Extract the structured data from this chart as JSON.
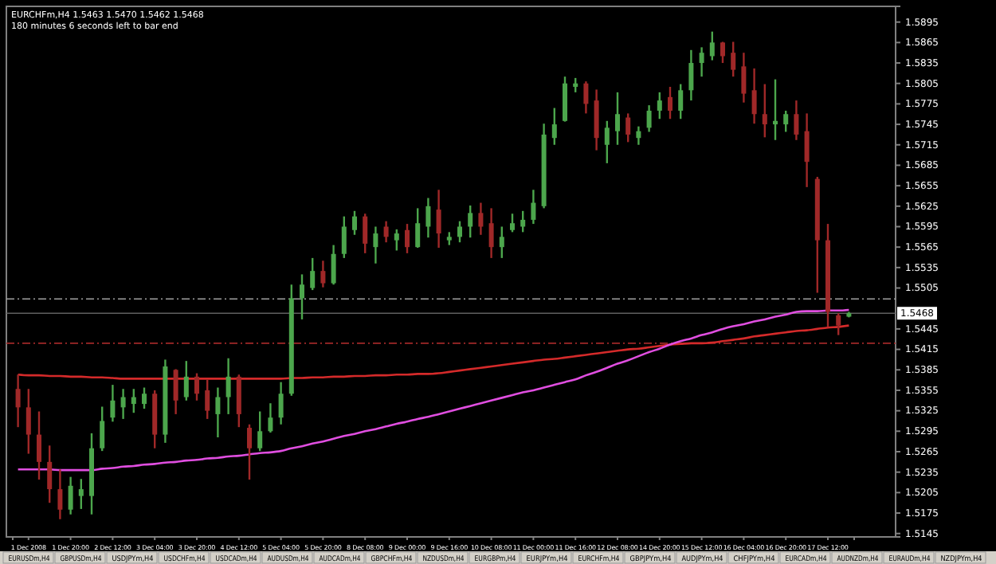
{
  "chart_data": {
    "type": "candlestick",
    "title": "EURCHFm,H4  1.5463 1.5470 1.5462 1.5468",
    "subtitle": "180 minutes 6 seconds left to bar end",
    "categories": [
      null,
      "1 Dec 2008",
      null,
      null,
      null,
      "1 Dec 20:00",
      null,
      null,
      null,
      "2 Dec 12:00",
      null,
      null,
      null,
      "3 Dec 04:00",
      null,
      null,
      null,
      "3 Dec 20:00",
      null,
      null,
      null,
      "4 Dec 12:00",
      null,
      null,
      null,
      "5 Dec 04:00",
      null,
      null,
      null,
      "5 Dec 20:00",
      null,
      null,
      null,
      "8 Dec 08:00",
      null,
      null,
      null,
      "9 Dec 00:00",
      null,
      null,
      null,
      "9 Dec 16:00",
      null,
      null,
      null,
      "10 Dec 08:00",
      null,
      null,
      null,
      "11 Dec 00:00",
      null,
      null,
      null,
      "11 Dec 16:00",
      null,
      null,
      null,
      "12 Dec 08:00",
      null,
      null,
      null,
      "14 Dec 20:00",
      null,
      null,
      null,
      "15 Dec 12:00",
      null,
      null,
      null,
      "16 Dec 04:00",
      null,
      null,
      null,
      "16 Dec 20:00",
      null,
      null,
      null,
      "17 Dec 12:00",
      null,
      null
    ],
    "ohlc": [
      [
        1.5357,
        1.5378,
        1.5301,
        1.533
      ],
      [
        1.533,
        1.5357,
        1.5262,
        1.529
      ],
      [
        1.529,
        1.5324,
        1.5224,
        1.525
      ],
      [
        1.525,
        1.5274,
        1.519,
        1.521
      ],
      [
        1.521,
        1.5239,
        1.5166,
        1.518
      ],
      [
        1.518,
        1.5228,
        1.5173,
        1.5215
      ],
      [
        1.52,
        1.5225,
        1.5181,
        1.521
      ],
      [
        1.52,
        1.5292,
        1.5173,
        1.527
      ],
      [
        1.527,
        1.5331,
        1.5266,
        1.531
      ],
      [
        1.5315,
        1.5363,
        1.5309,
        1.534
      ],
      [
        1.533,
        1.5357,
        1.5313,
        1.5345
      ],
      [
        1.5335,
        1.5357,
        1.5322,
        1.5345
      ],
      [
        1.5335,
        1.5359,
        1.5328,
        1.535
      ],
      [
        1.535,
        1.5355,
        1.527,
        1.529
      ],
      [
        1.529,
        1.54,
        1.5278,
        1.539
      ],
      [
        1.5385,
        1.5386,
        1.532,
        1.534
      ],
      [
        1.5345,
        1.5398,
        1.534,
        1.5375
      ],
      [
        1.5375,
        1.538,
        1.534,
        1.535
      ],
      [
        1.5355,
        1.5371,
        1.5313,
        1.5325
      ],
      [
        1.532,
        1.5359,
        1.5286,
        1.5345
      ],
      [
        1.5345,
        1.5402,
        1.532,
        1.5375
      ],
      [
        1.5375,
        1.5378,
        1.5301,
        1.532
      ],
      [
        1.53,
        1.5305,
        1.5224,
        1.527
      ],
      [
        1.527,
        1.5324,
        1.5266,
        1.5295
      ],
      [
        1.5295,
        1.5336,
        1.5293,
        1.5315
      ],
      [
        1.5315,
        1.5367,
        1.5305,
        1.535
      ],
      [
        1.535,
        1.551,
        1.5347,
        1.549
      ],
      [
        1.549,
        1.5525,
        1.5459,
        1.551
      ],
      [
        1.5505,
        1.5549,
        1.5502,
        1.553
      ],
      [
        1.553,
        1.5545,
        1.5506,
        1.5512
      ],
      [
        1.5512,
        1.5568,
        1.551,
        1.5555
      ],
      [
        1.5555,
        1.561,
        1.5549,
        1.5595
      ],
      [
        1.559,
        1.5618,
        1.5583,
        1.561
      ],
      [
        1.561,
        1.5614,
        1.5556,
        1.557
      ],
      [
        1.5565,
        1.5595,
        1.5541,
        1.5585
      ],
      [
        1.5595,
        1.5603,
        1.5572,
        1.558
      ],
      [
        1.5575,
        1.5591,
        1.556,
        1.5585
      ],
      [
        1.559,
        1.5599,
        1.5556,
        1.5565
      ],
      [
        1.5565,
        1.5622,
        1.5564,
        1.56
      ],
      [
        1.5595,
        1.5637,
        1.5579,
        1.5625
      ],
      [
        1.562,
        1.5649,
        1.5564,
        1.5585
      ],
      [
        1.5575,
        1.5587,
        1.5568,
        1.558
      ],
      [
        1.558,
        1.5603,
        1.5572,
        1.5595
      ],
      [
        1.5595,
        1.5626,
        1.5579,
        1.5615
      ],
      [
        1.5615,
        1.563,
        1.5583,
        1.5595
      ],
      [
        1.56,
        1.5622,
        1.5549,
        1.5565
      ],
      [
        1.5565,
        1.5595,
        1.5549,
        1.558
      ],
      [
        1.559,
        1.5614,
        1.5587,
        1.56
      ],
      [
        1.5595,
        1.5618,
        1.5587,
        1.5605
      ],
      [
        1.5605,
        1.5649,
        1.5599,
        1.563
      ],
      [
        1.5625,
        1.5746,
        1.5622,
        1.573
      ],
      [
        1.5725,
        1.5769,
        1.5715,
        1.5745
      ],
      [
        1.575,
        1.5815,
        1.5749,
        1.5805
      ],
      [
        1.58,
        1.5813,
        1.5792,
        1.5805
      ],
      [
        1.5805,
        1.5808,
        1.5761,
        1.5775
      ],
      [
        1.578,
        1.5796,
        1.5707,
        1.5725
      ],
      [
        1.5715,
        1.575,
        1.5688,
        1.574
      ],
      [
        1.5735,
        1.5792,
        1.5715,
        1.576
      ],
      [
        1.5755,
        1.5761,
        1.5719,
        1.573
      ],
      [
        1.5725,
        1.5742,
        1.5715,
        1.5735
      ],
      [
        1.574,
        1.5773,
        1.5734,
        1.5765
      ],
      [
        1.5765,
        1.5792,
        1.5753,
        1.578
      ],
      [
        1.5785,
        1.58,
        1.5753,
        1.5765
      ],
      [
        1.5765,
        1.5804,
        1.5753,
        1.5795
      ],
      [
        1.5795,
        1.5854,
        1.578,
        1.5835
      ],
      [
        1.5835,
        1.5858,
        1.5815,
        1.585
      ],
      [
        1.5845,
        1.5881,
        1.5839,
        1.5865
      ],
      [
        1.5865,
        1.5866,
        1.5835,
        1.5845
      ],
      [
        1.585,
        1.5866,
        1.5815,
        1.5825
      ],
      [
        1.583,
        1.585,
        1.5777,
        1.579
      ],
      [
        1.5795,
        1.5827,
        1.5746,
        1.576
      ],
      [
        1.576,
        1.5804,
        1.5726,
        1.5745
      ],
      [
        1.5745,
        1.5811,
        1.5722,
        1.575
      ],
      [
        1.5745,
        1.5765,
        1.5734,
        1.576
      ],
      [
        1.576,
        1.578,
        1.5722,
        1.573
      ],
      [
        1.5735,
        1.5761,
        1.5653,
        1.569
      ],
      [
        1.5665,
        1.5668,
        1.5498,
        1.5575
      ],
      [
        1.5575,
        1.5599,
        1.5448,
        1.547
      ],
      [
        1.5465,
        1.5468,
        1.5436,
        1.545
      ],
      [
        1.5463,
        1.547,
        1.5462,
        1.5468
      ]
    ],
    "colors": [
      "#a02828",
      "#a02828",
      "#a02828",
      "#a02828",
      "#a02828",
      "#4ca64c",
      "#4ca64c",
      "#4ca64c",
      "#4ca64c",
      "#4ca64c",
      "#4ca64c",
      "#4ca64c",
      "#4ca64c",
      "#a02828",
      "#4ca64c",
      "#a02828",
      "#4ca64c",
      "#a02828",
      "#a02828",
      "#4ca64c",
      "#4ca64c",
      "#a02828",
      "#a02828",
      "#4ca64c",
      "#4ca64c",
      "#4ca64c",
      "#4ca64c",
      "#4ca64c",
      "#4ca64c",
      "#a02828",
      "#4ca64c",
      "#4ca64c",
      "#4ca64c",
      "#a02828",
      "#4ca64c",
      "#a02828",
      "#4ca64c",
      "#a02828",
      "#4ca64c",
      "#4ca64c",
      "#a02828",
      "#4ca64c",
      "#4ca64c",
      "#4ca64c",
      "#a02828",
      "#a02828",
      "#4ca64c",
      "#4ca64c",
      "#4ca64c",
      "#4ca64c",
      "#4ca64c",
      "#4ca64c",
      "#4ca64c",
      "#4ca64c",
      "#a02828",
      "#a02828",
      "#4ca64c",
      "#4ca64c",
      "#a02828",
      "#4ca64c",
      "#4ca64c",
      "#4ca64c",
      "#a02828",
      "#4ca64c",
      "#4ca64c",
      "#4ca64c",
      "#4ca64c",
      "#a02828",
      "#a02828",
      "#a02828",
      "#a02828",
      "#a02828",
      "#4ca64c",
      "#4ca64c",
      "#a02828",
      "#a02828",
      "#a02828",
      "#a02828",
      "#a02828",
      "#4ca64c"
    ],
    "series": [
      {
        "type": "line",
        "color": "#d42a2a",
        "values": [
          1.5378,
          1.5377,
          1.5377,
          1.5376,
          1.5376,
          1.5375,
          1.5375,
          1.5374,
          1.5374,
          1.5373,
          1.5372,
          1.5372,
          1.5372,
          1.5372,
          1.5372,
          1.5372,
          1.5372,
          1.5372,
          1.5372,
          1.5372,
          1.5372,
          1.5372,
          1.5372,
          1.5372,
          1.5372,
          1.5372,
          1.5373,
          1.5373,
          1.5374,
          1.5374,
          1.5375,
          1.5375,
          1.5376,
          1.5376,
          1.5377,
          1.5377,
          1.5378,
          1.5378,
          1.5379,
          1.5379,
          1.538,
          1.5382,
          1.5384,
          1.5386,
          1.5388,
          1.539,
          1.5392,
          1.5394,
          1.5396,
          1.5398,
          1.54,
          1.5401,
          1.5403,
          1.5405,
          1.5407,
          1.5409,
          1.5411,
          1.5413,
          1.5415,
          1.5416,
          1.5418,
          1.542,
          1.5422,
          1.5423,
          1.5424,
          1.5424,
          1.5425,
          1.5427,
          1.5429,
          1.5431,
          1.5434,
          1.5436,
          1.5438,
          1.544,
          1.5442,
          1.5443,
          1.5445,
          1.5447,
          1.5448,
          1.545
        ]
      },
      {
        "type": "line",
        "color": "#e04ee0",
        "values": [
          1.5239,
          1.5239,
          1.5239,
          1.5239,
          1.5238,
          1.5238,
          1.5238,
          1.5238,
          1.524,
          1.5241,
          1.5243,
          1.5244,
          1.5246,
          1.5247,
          1.5249,
          1.525,
          1.5252,
          1.5253,
          1.5255,
          1.5256,
          1.5258,
          1.5259,
          1.5261,
          1.5263,
          1.5264,
          1.5266,
          1.527,
          1.5273,
          1.5277,
          1.528,
          1.5284,
          1.5288,
          1.5291,
          1.5295,
          1.5298,
          1.5302,
          1.5306,
          1.5309,
          1.5313,
          1.5316,
          1.532,
          1.5324,
          1.5328,
          1.5332,
          1.5336,
          1.534,
          1.5344,
          1.5348,
          1.5352,
          1.5355,
          1.5359,
          1.5363,
          1.5367,
          1.5371,
          1.5377,
          1.5382,
          1.5388,
          1.5394,
          1.5399,
          1.5405,
          1.5411,
          1.5416,
          1.5422,
          1.5427,
          1.5431,
          1.5436,
          1.544,
          1.5445,
          1.5449,
          1.5452,
          1.5456,
          1.5459,
          1.5463,
          1.5466,
          1.547,
          1.5471,
          1.5471,
          1.5472,
          1.5472,
          1.5473
        ]
      }
    ],
    "ylim": [
      1.514,
      1.5918
    ],
    "yticks": [
      1.5145,
      1.5175,
      1.5205,
      1.5235,
      1.5265,
      1.5295,
      1.5325,
      1.5355,
      1.5385,
      1.5415,
      1.5445,
      1.5505,
      1.5535,
      1.5565,
      1.5595,
      1.5625,
      1.5655,
      1.5685,
      1.5715,
      1.5745,
      1.5775,
      1.5805,
      1.5835,
      1.5865,
      1.5895
    ],
    "ref_lines": [
      {
        "axis": "y",
        "value": 1.5489,
        "color": "#a0a0a0",
        "line_style": "dashdot"
      },
      {
        "axis": "y",
        "value": 1.5424,
        "color": "#a02828",
        "line_style": "dashdot"
      },
      {
        "axis": "y",
        "value": 1.5468,
        "label": "1.5468",
        "color": "#606060",
        "line_style": "solid"
      }
    ],
    "annotations": [
      "EURUSDm,H4",
      "GBPUSDm,H4",
      "USDJPYm,H4",
      "USDCHFm,H4",
      "USDCADm,H4",
      "AUDUSDm,H4",
      "AUDCADm,H4",
      "GBPCHFm,H4",
      "NZDUSDm,H4",
      "EURGBPm,H4",
      "EURJPYm,H4",
      "EURCHFm,H4",
      "GBPJPYm,H4",
      "AUDJPYm,H4",
      "CHFJPYm,H4",
      "EURCADm,H4",
      "AUDNZDm,H4",
      "EURAUDm,H4",
      "NZDJPYm,H4"
    ]
  }
}
